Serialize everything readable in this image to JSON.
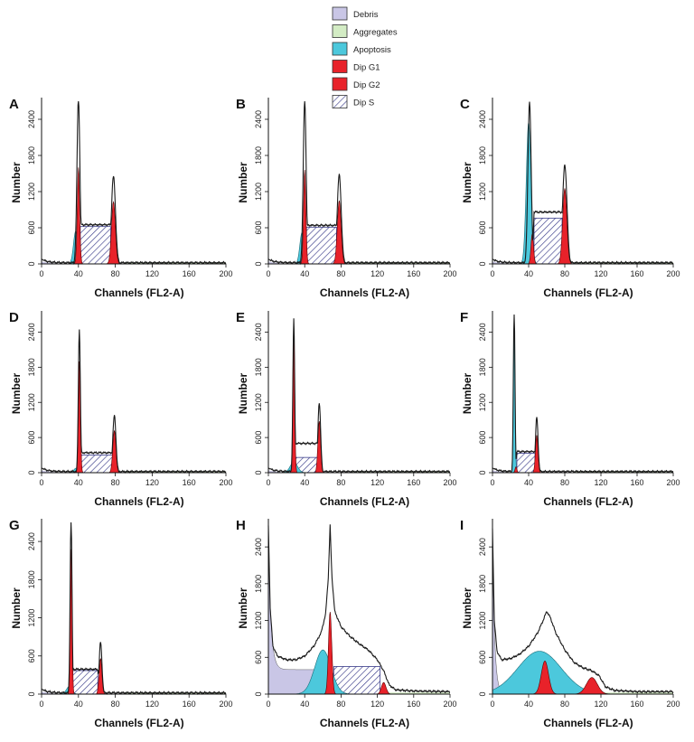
{
  "colors": {
    "debris": "#c9c6e6",
    "aggregates": "#d3ecc4",
    "apoptosis": "#4cc8dc",
    "dip_g1": "#e8222a",
    "dip_g2": "#e8222a",
    "dip_s_hatch": "#3a3c8a",
    "envelope": "#1a1a1a"
  },
  "legend": {
    "items": [
      {
        "label": "Debris",
        "color": "#c9c6e6"
      },
      {
        "label": "Aggregates",
        "color": "#d3ecc4"
      },
      {
        "label": "Apoptosis",
        "color": "#4cc8dc"
      },
      {
        "label": "Dip G1",
        "color": "#e8222a"
      },
      {
        "label": "Dip G2",
        "color": "#e8222a"
      },
      {
        "label": "Dip S",
        "color": "hatch"
      }
    ]
  },
  "chart_data": [
    {
      "panel": "A",
      "type": "area",
      "xlabel": "Channels (FL2-A)",
      "ylabel": "Number",
      "xlim": [
        0,
        200
      ],
      "ylim": [
        0,
        2700
      ],
      "xticks": [
        "0",
        "40",
        "80",
        "120",
        "160",
        "200"
      ],
      "yticks": [
        "0",
        "600",
        "1200",
        "1800",
        "2400"
      ],
      "components": {
        "debris": {
          "h": 0,
          "decay": 8
        },
        "apoptosis": {
          "center": 37,
          "height": 540,
          "sigma": 2.4
        },
        "g1": {
          "center": 40,
          "height": 1600,
          "sigma": 1.3
        },
        "g2": {
          "center": 78,
          "height": 1030,
          "sigma": 2.1
        },
        "s": {
          "from": 42,
          "to": 75,
          "height": 620
        }
      },
      "envelope": {
        "baseline": 20,
        "peaks": [
          [
            40,
            2760,
            1.6
          ],
          [
            78,
            1450,
            2.2
          ]
        ],
        "plateau": {
          "from": 42,
          "to": 75,
          "height": 650
        }
      }
    },
    {
      "panel": "B",
      "type": "area",
      "xlabel": "Channels (FL2-A)",
      "ylabel": "Number",
      "xlim": [
        0,
        200
      ],
      "ylim": [
        0,
        2700
      ],
      "xticks": [
        "0",
        "40",
        "80",
        "120",
        "160",
        "200"
      ],
      "yticks": [
        "0",
        "600",
        "1200",
        "1800",
        "2400"
      ],
      "components": {
        "debris": {
          "h": 0,
          "decay": 8
        },
        "apoptosis": {
          "center": 37,
          "height": 520,
          "sigma": 2.4
        },
        "g1": {
          "center": 40,
          "height": 1560,
          "sigma": 1.3
        },
        "g2": {
          "center": 78,
          "height": 1050,
          "sigma": 2.1
        },
        "s": {
          "from": 42,
          "to": 75,
          "height": 610
        }
      },
      "envelope": {
        "baseline": 20,
        "peaks": [
          [
            40,
            2720,
            1.6
          ],
          [
            78,
            1480,
            2.2
          ]
        ],
        "plateau": {
          "from": 42,
          "to": 75,
          "height": 640
        }
      }
    },
    {
      "panel": "C",
      "type": "area",
      "xlabel": "Channels (FL2-A)",
      "ylabel": "Number",
      "xlim": [
        0,
        200
      ],
      "ylim": [
        0,
        2700
      ],
      "xticks": [
        "0",
        "40",
        "80",
        "120",
        "160",
        "200"
      ],
      "yticks": [
        "0",
        "600",
        "1200",
        "1800",
        "2400"
      ],
      "components": {
        "debris": {
          "h": 0,
          "decay": 8
        },
        "apoptosis": {
          "center": 40,
          "height": 2360,
          "sigma": 2.6
        },
        "g1": {
          "center": 44,
          "height": 500,
          "sigma": 1.4
        },
        "g2": {
          "center": 80,
          "height": 1250,
          "sigma": 2.3
        },
        "s": {
          "from": 46,
          "to": 77,
          "height": 760
        }
      },
      "envelope": {
        "baseline": 20,
        "peaks": [
          [
            41,
            2700,
            1.8
          ],
          [
            80,
            1650,
            2.4
          ]
        ],
        "plateau": {
          "from": 46,
          "to": 77,
          "height": 860
        }
      }
    },
    {
      "panel": "D",
      "type": "area",
      "xlabel": "Channels (FL2-A)",
      "ylabel": "Number",
      "xlim": [
        0,
        200
      ],
      "ylim": [
        0,
        2700
      ],
      "xticks": [
        "0",
        "40",
        "80",
        "120",
        "160",
        "200"
      ],
      "yticks": [
        "0",
        "600",
        "1200",
        "1800",
        "2400"
      ],
      "components": {
        "debris": {
          "h": 0,
          "decay": 8
        },
        "apoptosis": {
          "center": 38,
          "height": 80,
          "sigma": 3
        },
        "g1": {
          "center": 41,
          "height": 1900,
          "sigma": 1.1
        },
        "g2": {
          "center": 79,
          "height": 720,
          "sigma": 1.7
        },
        "s": {
          "from": 43,
          "to": 77,
          "height": 300
        }
      },
      "envelope": {
        "baseline": 20,
        "peaks": [
          [
            41,
            2460,
            1.1
          ],
          [
            79,
            980,
            1.7
          ]
        ],
        "plateau": {
          "from": 43,
          "to": 77,
          "height": 340
        }
      }
    },
    {
      "panel": "E",
      "type": "area",
      "xlabel": "Channels (FL2-A)",
      "ylabel": "Number",
      "xlim": [
        0,
        200
      ],
      "ylim": [
        0,
        2700
      ],
      "xticks": [
        "0",
        "40",
        "80",
        "120",
        "160",
        "200"
      ],
      "yticks": [
        "0",
        "600",
        "1200",
        "1800",
        "2400"
      ],
      "components": {
        "debris": {
          "h": 0,
          "decay": 8
        },
        "apoptosis": {
          "center": 28,
          "height": 180,
          "sigma": 4
        },
        "g1": {
          "center": 28,
          "height": 2550,
          "sigma": 1.0
        },
        "g2": {
          "center": 56,
          "height": 880,
          "sigma": 1.5
        },
        "s": {
          "from": 30,
          "to": 54,
          "height": 260
        }
      },
      "envelope": {
        "baseline": 20,
        "peaks": [
          [
            28,
            2620,
            1.0
          ],
          [
            56,
            1200,
            1.5
          ]
        ],
        "plateau": {
          "from": 30,
          "to": 54,
          "height": 500
        }
      }
    },
    {
      "panel": "F",
      "type": "area",
      "xlabel": "Channels (FL2-A)",
      "ylabel": "Number",
      "xlim": [
        0,
        200
      ],
      "ylim": [
        0,
        2700
      ],
      "xticks": [
        "0",
        "40",
        "80",
        "120",
        "160",
        "200"
      ],
      "yticks": [
        "0",
        "600",
        "1200",
        "1800",
        "2400"
      ],
      "components": {
        "debris": {
          "h": 0,
          "decay": 8
        },
        "apoptosis": {
          "center": 24,
          "height": 2650,
          "sigma": 0.9
        },
        "g1": {
          "center": 26,
          "height": 100,
          "sigma": 1.0
        },
        "g2": {
          "center": 49,
          "height": 640,
          "sigma": 1.4
        },
        "s": {
          "from": 27,
          "to": 47,
          "height": 330
        }
      },
      "envelope": {
        "baseline": 20,
        "peaks": [
          [
            24,
            2800,
            0.9
          ],
          [
            49,
            950,
            1.4
          ]
        ],
        "plateau": {
          "from": 27,
          "to": 47,
          "height": 360
        }
      }
    },
    {
      "panel": "G",
      "type": "area",
      "xlabel": "Channels (FL2-A)",
      "ylabel": "Number",
      "xlim": [
        0,
        200
      ],
      "ylim": [
        0,
        2700
      ],
      "xticks": [
        "0",
        "40",
        "80",
        "120",
        "160",
        "200"
      ],
      "yticks": [
        "0",
        "600",
        "1200",
        "1800",
        "2400"
      ],
      "components": {
        "debris": {
          "h": 0,
          "decay": 8
        },
        "apoptosis": {
          "center": 30,
          "height": 120,
          "sigma": 3
        },
        "g1": {
          "center": 32,
          "height": 2280,
          "sigma": 1.0
        },
        "g2": {
          "center": 64,
          "height": 560,
          "sigma": 1.5
        },
        "s": {
          "from": 34,
          "to": 61,
          "height": 370
        }
      },
      "envelope": {
        "baseline": 20,
        "peaks": [
          [
            32,
            2760,
            1.0
          ],
          [
            64,
            820,
            1.5
          ]
        ],
        "plateau": {
          "from": 34,
          "to": 61,
          "height": 390
        }
      }
    },
    {
      "panel": "H",
      "type": "area",
      "xlabel": "Channels (FL2-A)",
      "ylabel": "Number",
      "xlim": [
        0,
        200
      ],
      "ylim": [
        0,
        2800
      ],
      "xticks": [
        "0",
        "40",
        "80",
        "120",
        "160",
        "200"
      ],
      "yticks": [
        "0",
        "600",
        "1200",
        "1800",
        "2400"
      ],
      "components": {
        "debris": {
          "h": 2500,
          "decay": 3,
          "floor": 400,
          "cut": 68
        },
        "apoptosis": {
          "center": 60,
          "height": 720,
          "sigma": 9
        },
        "g1": {
          "center": 68,
          "height": 1340,
          "sigma": 1.8
        },
        "g2": {
          "center": 127,
          "height": 190,
          "sigma": 2.5
        },
        "s": {
          "from": 72,
          "to": 123,
          "height": 450
        }
      },
      "envelope": {
        "baseline": 80,
        "peaks": [
          [
            68,
            1580,
            3.2
          ],
          [
            127,
            120,
            2.5
          ]
        ],
        "curve": [
          [
            0,
            2750
          ],
          [
            2,
            1400
          ],
          [
            5,
            780
          ],
          [
            10,
            620
          ],
          [
            20,
            560
          ],
          [
            30,
            560
          ],
          [
            40,
            620
          ],
          [
            50,
            780
          ],
          [
            58,
            1000
          ],
          [
            63,
            1300
          ],
          [
            66,
            1900
          ],
          [
            68,
            2750
          ],
          [
            70,
            1900
          ],
          [
            73,
            1350
          ],
          [
            80,
            1100
          ],
          [
            90,
            940
          ],
          [
            100,
            820
          ],
          [
            110,
            720
          ],
          [
            120,
            560
          ],
          [
            127,
            380
          ],
          [
            133,
            150
          ],
          [
            140,
            70
          ],
          [
            160,
            50
          ],
          [
            200,
            40
          ]
        ]
      }
    },
    {
      "panel": "I",
      "type": "area",
      "xlabel": "Channels (FL2-A)",
      "ylabel": "Number",
      "xlim": [
        0,
        200
      ],
      "ylim": [
        0,
        2800
      ],
      "xticks": [
        "0",
        "40",
        "80",
        "120",
        "160",
        "200"
      ],
      "yticks": [
        "0",
        "600",
        "1200",
        "1800",
        "2400"
      ],
      "components": {
        "debris": {
          "h": 2600,
          "decay": 2.4,
          "floor": 0,
          "cut": 12
        },
        "apoptosis": {
          "center": 52,
          "height": 700,
          "sigma": 24
        },
        "g1": {
          "center": 58,
          "height": 540,
          "sigma": 4
        },
        "g2": {
          "center": 110,
          "height": 270,
          "sigma": 6
        },
        "s": {
          "from": 0,
          "to": 0,
          "height": 0
        }
      },
      "envelope": {
        "baseline": 40,
        "curve": [
          [
            0,
            2700
          ],
          [
            2,
            1200
          ],
          [
            5,
            700
          ],
          [
            10,
            560
          ],
          [
            20,
            580
          ],
          [
            30,
            650
          ],
          [
            40,
            780
          ],
          [
            50,
            1000
          ],
          [
            56,
            1200
          ],
          [
            60,
            1350
          ],
          [
            64,
            1250
          ],
          [
            70,
            1000
          ],
          [
            80,
            720
          ],
          [
            90,
            520
          ],
          [
            100,
            430
          ],
          [
            110,
            380
          ],
          [
            118,
            300
          ],
          [
            125,
            120
          ],
          [
            135,
            60
          ],
          [
            160,
            40
          ],
          [
            200,
            40
          ]
        ]
      }
    }
  ]
}
